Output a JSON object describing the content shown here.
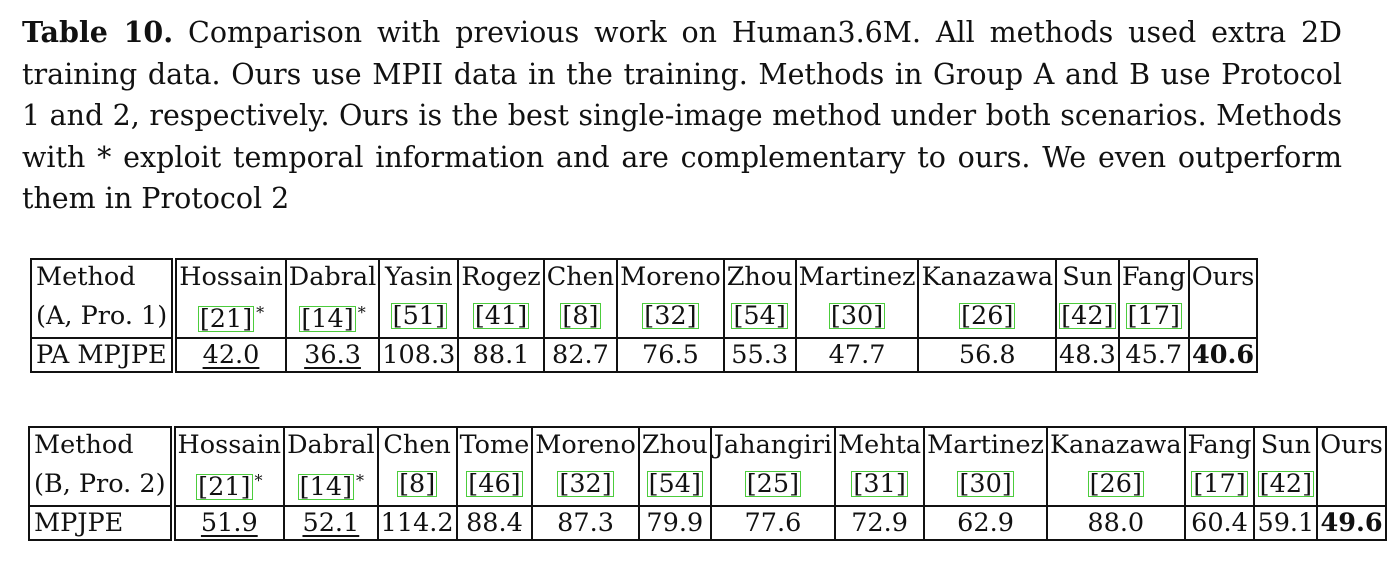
{
  "caption": {
    "label": "Table 10.",
    "text": "Comparison with previous work on Human3.6M. All methods used extra 2D training data. Ours use MPII data in the training. Methods in Group A and B use Protocol 1 and 2, respectively. Ours is the best single-image method under both scenarios. Methods with * exploit temporal information and are complementary to ours. We even outperform them in Protocol 2"
  },
  "colors": {
    "ref_box": "#4ccc3c"
  },
  "table_a": {
    "method_header_line1": "Method",
    "method_header_line2": "(A, Pro. 1)",
    "metric_label": "PA MPJPE",
    "methods": [
      {
        "name": "Hossain",
        "ref": "[21]",
        "star": "*",
        "value": "42.0",
        "style": "underline"
      },
      {
        "name": "Dabral",
        "ref": "[14]",
        "star": "*",
        "value": "36.3",
        "style": "underline"
      },
      {
        "name": "Yasin",
        "ref": "[51]",
        "star": "",
        "value": "108.3",
        "style": ""
      },
      {
        "name": "Rogez",
        "ref": "[41]",
        "star": "",
        "value": "88.1",
        "style": ""
      },
      {
        "name": "Chen",
        "ref": "[8]",
        "star": "",
        "value": "82.7",
        "style": ""
      },
      {
        "name": "Moreno",
        "ref": "[32]",
        "star": "",
        "value": "76.5",
        "style": ""
      },
      {
        "name": "Zhou",
        "ref": "[54]",
        "star": "",
        "value": "55.3",
        "style": ""
      },
      {
        "name": "Martinez",
        "ref": "[30]",
        "star": "",
        "value": "47.7",
        "style": ""
      },
      {
        "name": "Kanazawa",
        "ref": "[26]",
        "star": "",
        "value": "56.8",
        "style": ""
      },
      {
        "name": "Sun",
        "ref": "[42]",
        "star": "",
        "value": "48.3",
        "style": ""
      },
      {
        "name": "Fang",
        "ref": "[17]",
        "star": "",
        "value": "45.7",
        "style": ""
      },
      {
        "name": "Ours",
        "ref": "",
        "star": "",
        "value": "40.6",
        "style": "bold"
      }
    ]
  },
  "table_b": {
    "method_header_line1": "Method",
    "method_header_line2": "(B, Pro. 2)",
    "metric_label": "MPJPE",
    "methods": [
      {
        "name": "Hossain",
        "ref": "[21]",
        "star": "*",
        "value": "51.9",
        "style": "underline"
      },
      {
        "name": "Dabral",
        "ref": "[14]",
        "star": "*",
        "value": "52.1",
        "style": "underline"
      },
      {
        "name": "Chen",
        "ref": "[8]",
        "star": "",
        "value": "114.2",
        "style": ""
      },
      {
        "name": "Tome",
        "ref": "[46]",
        "star": "",
        "value": "88.4",
        "style": ""
      },
      {
        "name": "Moreno",
        "ref": "[32]",
        "star": "",
        "value": "87.3",
        "style": ""
      },
      {
        "name": "Zhou",
        "ref": "[54]",
        "star": "",
        "value": "79.9",
        "style": ""
      },
      {
        "name": "Jahangiri",
        "ref": "[25]",
        "star": "",
        "value": "77.6",
        "style": ""
      },
      {
        "name": "Mehta",
        "ref": "[31]",
        "star": "",
        "value": "72.9",
        "style": ""
      },
      {
        "name": "Martinez",
        "ref": "[30]",
        "star": "",
        "value": "62.9",
        "style": ""
      },
      {
        "name": "Kanazawa",
        "ref": "[26]",
        "star": "",
        "value": "88.0",
        "style": ""
      },
      {
        "name": "Fang",
        "ref": "[17]",
        "star": "",
        "value": "60.4",
        "style": ""
      },
      {
        "name": "Sun",
        "ref": "[42]",
        "star": "",
        "value": "59.1",
        "style": ""
      },
      {
        "name": "Ours",
        "ref": "",
        "star": "",
        "value": "49.6",
        "style": "bold"
      }
    ]
  }
}
